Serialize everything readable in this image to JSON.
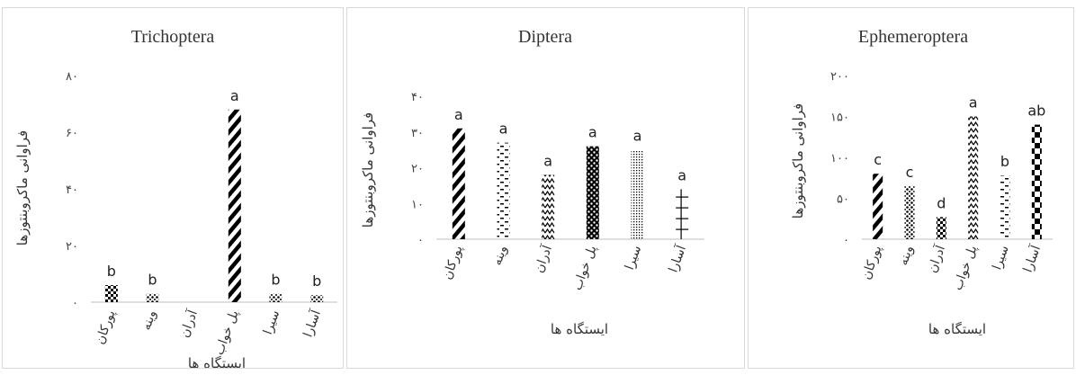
{
  "chart_data": [
    {
      "type": "bar",
      "title": "Trichoptera",
      "ylabel": "فراوانی ماکروبنتوزها",
      "xlabel": "ایستگاه ها",
      "categories": [
        "پورکان",
        "وینه",
        "آدران",
        "پل خواب",
        "سیرا",
        "آسارا"
      ],
      "values": [
        6,
        3,
        0,
        68,
        3,
        2.5
      ],
      "labels": [
        "b",
        "b",
        "",
        "a",
        "b",
        "b"
      ],
      "patterns": [
        "checker",
        "dots",
        "none",
        "diag-bold",
        "dots",
        "dots"
      ],
      "ylim": [
        0,
        80
      ],
      "yticks": [
        "۰",
        "۲۰",
        "۴۰",
        "۶۰",
        "۸۰"
      ]
    },
    {
      "type": "bar",
      "title": "Diptera",
      "ylabel": "فراوانی ماکروبنتوزها",
      "xlabel": "ایستگاه ها",
      "categories": [
        "پورکان",
        "وینه",
        "آدران",
        "پل خواب",
        "سیرا",
        "آسارا"
      ],
      "values": [
        31,
        27,
        18,
        26,
        25,
        14
      ],
      "labels": [
        "a",
        "a",
        "a",
        "a",
        "a",
        "a"
      ],
      "patterns": [
        "diag-bold",
        "dashes",
        "zigzag",
        "checker-dots",
        "fine-dots",
        "cross"
      ],
      "ylim": [
        0,
        40
      ],
      "yticks": [
        "۰",
        "۱۰",
        "۲۰",
        "۳۰",
        "۴۰"
      ]
    },
    {
      "type": "bar",
      "title": "Ephemeroptera",
      "ylabel": "فراوانی ماکروبنتوزها",
      "xlabel": "ایستگاه ها",
      "categories": [
        "پورکان",
        "وینه",
        "آدران",
        "پل خواب",
        "سیرا",
        "آسارا"
      ],
      "values": [
        80,
        65,
        27,
        150,
        78,
        140
      ],
      "labels": [
        "c",
        "c",
        "d",
        "a",
        "b",
        "ab"
      ],
      "patterns": [
        "diag-bold",
        "dots",
        "checker",
        "zigzag",
        "dashes",
        "checker-big"
      ],
      "ylim": [
        0,
        200
      ],
      "yticks": [
        "۰",
        "۵۰",
        "۱۰۰",
        "۱۵۰",
        "۲۰۰"
      ]
    }
  ]
}
